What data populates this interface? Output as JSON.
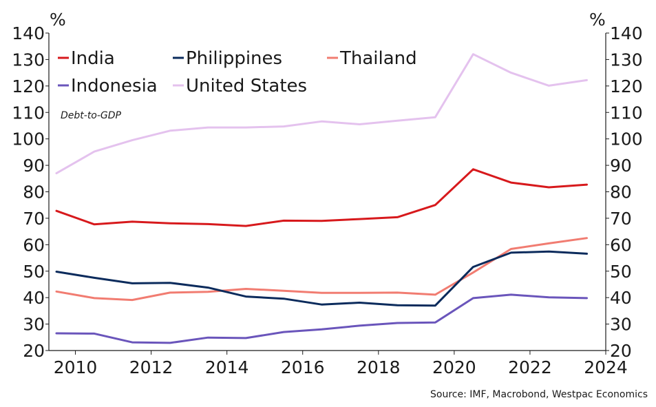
{
  "chart_data": {
    "type": "line",
    "unit_left": "%",
    "unit_right": "%",
    "annotation": "Debt-to-GDP",
    "source": "Source: IMF, Macrobond, Westpac Economics",
    "ylim": [
      20,
      140
    ],
    "yticks": [
      20,
      30,
      40,
      50,
      60,
      70,
      80,
      90,
      100,
      110,
      120,
      130,
      140
    ],
    "xlim": [
      2009.3,
      2024.0
    ],
    "xticks": [
      2010,
      2012,
      2014,
      2016,
      2018,
      2020,
      2022,
      2024
    ],
    "x": [
      2009.5,
      2010.5,
      2011.5,
      2012.5,
      2013.5,
      2014.5,
      2015.5,
      2016.5,
      2017.5,
      2018.5,
      2019.5,
      2020.5,
      2021.5,
      2022.5,
      2023.5
    ],
    "legend_position": "top-left",
    "grid": false,
    "series": [
      {
        "name": "India",
        "color": "#d7191c",
        "values": [
          72.8,
          67.7,
          68.7,
          68.1,
          67.8,
          67.1,
          69.1,
          69.0,
          69.7,
          70.4,
          75.0,
          88.5,
          83.5,
          81.7,
          82.7
        ]
      },
      {
        "name": "Philippines",
        "color": "#0b2b5c",
        "values": [
          49.8,
          47.5,
          45.4,
          45.6,
          43.8,
          40.4,
          39.6,
          37.4,
          38.1,
          37.1,
          37.0,
          51.6,
          57.0,
          57.4,
          56.6
        ]
      },
      {
        "name": "Thailand",
        "color": "#f17c71",
        "values": [
          42.3,
          39.8,
          39.1,
          41.9,
          42.2,
          43.3,
          42.6,
          41.8,
          41.8,
          41.9,
          41.1,
          49.5,
          58.4,
          60.5,
          62.5
        ]
      },
      {
        "name": "Indonesia",
        "color": "#6a55bb",
        "values": [
          26.5,
          26.4,
          23.1,
          22.9,
          24.9,
          24.7,
          27.0,
          28.0,
          29.4,
          30.4,
          30.6,
          39.8,
          41.1,
          40.1,
          39.8
        ]
      },
      {
        "name": "United States",
        "color": "#e4c2ee",
        "values": [
          87.0,
          95.2,
          99.5,
          103.1,
          104.3,
          104.3,
          104.7,
          106.6,
          105.5,
          106.9,
          108.2,
          132.0,
          125.0,
          120.1,
          122.2
        ]
      }
    ]
  }
}
